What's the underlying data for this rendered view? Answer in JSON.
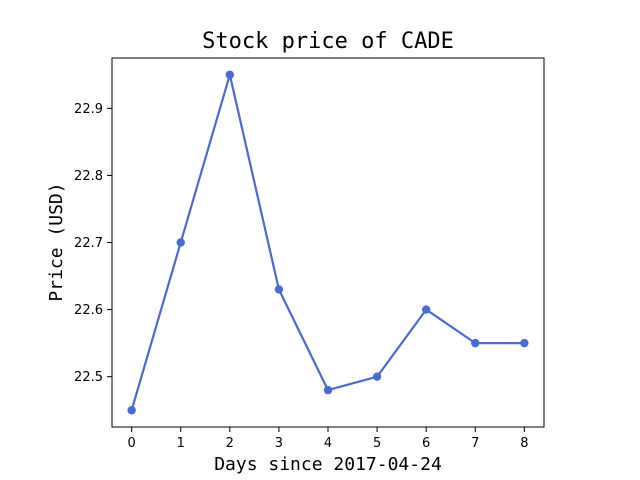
{
  "chart_data": {
    "type": "line",
    "title": "Stock price of CADE",
    "xlabel": "Days since 2017-04-24",
    "ylabel": "Price (USD)",
    "x": [
      0,
      1,
      2,
      3,
      4,
      5,
      6,
      7,
      8
    ],
    "series": [
      {
        "values": [
          22.45,
          22.7,
          22.95,
          22.63,
          22.48,
          22.5,
          22.6,
          22.55,
          22.55
        ],
        "color": "#4a6bcf"
      }
    ],
    "xticks": [
      0,
      1,
      2,
      3,
      4,
      5,
      6,
      7,
      8
    ],
    "yticks": [
      "22.5",
      "22.6",
      "22.7",
      "22.8",
      "22.9"
    ],
    "xlim": [
      -0.4,
      8.4
    ],
    "ylim": [
      22.425,
      22.975
    ],
    "grid": false,
    "markers": true
  }
}
